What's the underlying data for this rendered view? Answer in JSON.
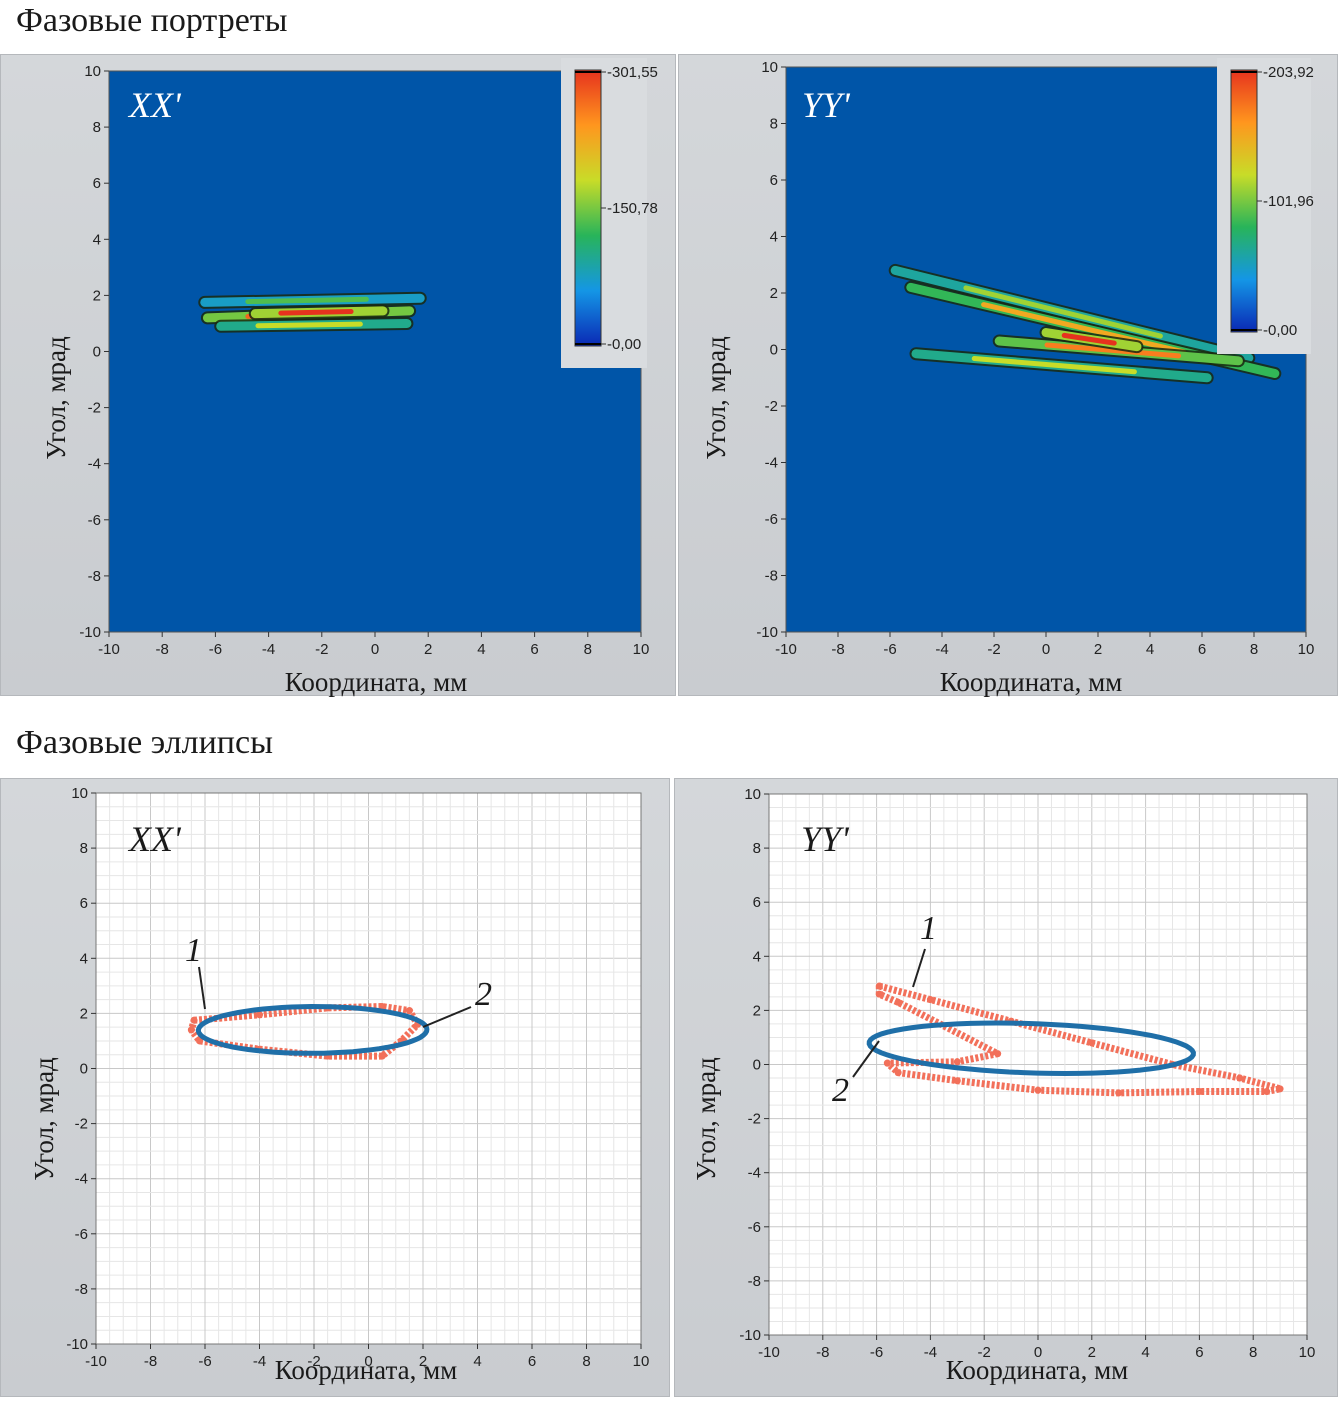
{
  "sections": {
    "portraits_title": "Фазовые портреты",
    "ellipses_title": "Фазовые эллипсы"
  },
  "colors": {
    "plot_bg_blue": "#0055a8",
    "ellipse_blue": "#1f6fa8",
    "points_red": "#f2705a",
    "panel_gray": "#cfd2d5"
  },
  "chart_data": [
    {
      "id": "portrait_xx",
      "type": "heatmap",
      "tag": "XX'",
      "xlabel": "Координата, мм",
      "ylabel": "Угол, мрад",
      "xlim": [
        -10,
        10
      ],
      "ylim": [
        -10,
        10
      ],
      "xticks": [
        "-10",
        "-8",
        "-6",
        "-4",
        "-2",
        "0",
        "2",
        "4",
        "6",
        "8",
        "10"
      ],
      "yticks": [
        "10",
        "8",
        "6",
        "4",
        "2",
        "0",
        "-2",
        "-4",
        "-6",
        "-8",
        "-10"
      ],
      "colorbar": {
        "labels": [
          "301,55",
          "150,78",
          "0,00"
        ],
        "range": [
          0,
          301.55
        ]
      },
      "grid": false,
      "beam_streaks": [
        {
          "x": [
            -6.4,
            1.7
          ],
          "y": [
            1.75,
            1.9
          ],
          "intensity": 0.45
        },
        {
          "x": [
            -6.3,
            1.3
          ],
          "y": [
            1.2,
            1.45
          ],
          "intensity": 0.9
        },
        {
          "x": [
            -5.8,
            1.2
          ],
          "y": [
            0.9,
            1.0
          ],
          "intensity": 0.6
        },
        {
          "x": [
            -4.5,
            0.3
          ],
          "y": [
            1.35,
            1.45
          ],
          "intensity": 1.0
        }
      ]
    },
    {
      "id": "portrait_yy",
      "type": "heatmap",
      "tag": "YY'",
      "xlabel": "Координата, мм",
      "ylabel": "Угол, мрад",
      "xlim": [
        -10,
        10
      ],
      "ylim": [
        -10,
        10
      ],
      "xticks": [
        "-10",
        "-8",
        "-6",
        "-4",
        "-2",
        "0",
        "2",
        "4",
        "6",
        "8",
        "10"
      ],
      "yticks": [
        "10",
        "8",
        "6",
        "4",
        "2",
        "0",
        "-2",
        "-4",
        "-6",
        "-8",
        "-10"
      ],
      "colorbar": {
        "labels": [
          "203,92",
          "101,96",
          "0,00"
        ],
        "range": [
          0,
          203.92
        ]
      },
      "grid": false,
      "beam_streaks": [
        {
          "x": [
            -5.8,
            7.8
          ],
          "y": [
            2.8,
            -0.3
          ],
          "intensity": 0.55
        },
        {
          "x": [
            -5.2,
            8.8
          ],
          "y": [
            2.2,
            -0.85
          ],
          "intensity": 0.75
        },
        {
          "x": [
            -5.0,
            6.2
          ],
          "y": [
            -0.15,
            -1.0
          ],
          "intensity": 0.6
        },
        {
          "x": [
            -1.8,
            7.4
          ],
          "y": [
            0.3,
            -0.4
          ],
          "intensity": 0.85
        },
        {
          "x": [
            0.0,
            3.5
          ],
          "y": [
            0.6,
            0.1
          ],
          "intensity": 1.0
        }
      ]
    },
    {
      "id": "ellipse_xx",
      "type": "scatter",
      "tag": "XX'",
      "xlabel": "Координата, мм",
      "ylabel": "Угол, мрад",
      "xlim": [
        -10,
        10
      ],
      "ylim": [
        -10,
        10
      ],
      "xticks": [
        "-10",
        "-8",
        "-6",
        "-4",
        "-2",
        "0",
        "2",
        "4",
        "6",
        "8",
        "10"
      ],
      "yticks": [
        "10",
        "8",
        "6",
        "4",
        "2",
        "0",
        "-2",
        "-4",
        "-6",
        "-8",
        "-10"
      ],
      "grid": true,
      "callouts": [
        "1",
        "2"
      ],
      "points_outline": [
        [
          -6.4,
          1.75
        ],
        [
          -4,
          1.95
        ],
        [
          -1.5,
          2.2
        ],
        [
          0.5,
          2.25
        ],
        [
          1.5,
          2.1
        ],
        [
          1.8,
          1.6
        ],
        [
          1.2,
          1.0
        ],
        [
          0.5,
          0.45
        ],
        [
          -1.5,
          0.45
        ],
        [
          -4,
          0.7
        ],
        [
          -6.2,
          1.0
        ],
        [
          -6.5,
          1.4
        ]
      ],
      "ellipse": {
        "center": [
          -2.05,
          1.4
        ],
        "semi_axes": [
          4.2,
          0.85
        ],
        "tilt_deg": 3
      }
    },
    {
      "id": "ellipse_yy",
      "type": "scatter",
      "tag": "YY'",
      "xlabel": "Координата, мм",
      "ylabel": "Угол, мрад",
      "xlim": [
        -10,
        10
      ],
      "ylim": [
        -10,
        10
      ],
      "xticks": [
        "-10",
        "-8",
        "-6",
        "-4",
        "-2",
        "0",
        "2",
        "4",
        "6",
        "8",
        "10"
      ],
      "yticks": [
        "10",
        "8",
        "6",
        "4",
        "2",
        "0",
        "-2",
        "-4",
        "-6",
        "-8",
        "-10"
      ],
      "grid": true,
      "callouts": [
        "1",
        "2"
      ],
      "points_outline": [
        [
          -5.9,
          2.9
        ],
        [
          -4,
          2.4
        ],
        [
          -1,
          1.6
        ],
        [
          2,
          0.8
        ],
        [
          5,
          0.0
        ],
        [
          7.5,
          -0.5
        ],
        [
          9.0,
          -0.9
        ],
        [
          8.5,
          -1.0
        ],
        [
          6,
          -1.0
        ],
        [
          3,
          -1.05
        ],
        [
          0,
          -0.95
        ],
        [
          -3,
          -0.6
        ],
        [
          -5.2,
          -0.3
        ],
        [
          -5.6,
          0.05
        ],
        [
          -3,
          0.1
        ],
        [
          -1.5,
          0.4
        ],
        [
          -5.2,
          2.3
        ],
        [
          -5.9,
          2.6
        ]
      ],
      "ellipse": {
        "center": [
          -0.25,
          0.6
        ],
        "semi_axes": [
          6.35,
          0.95
        ],
        "tilt_deg": -18.5
      }
    }
  ]
}
